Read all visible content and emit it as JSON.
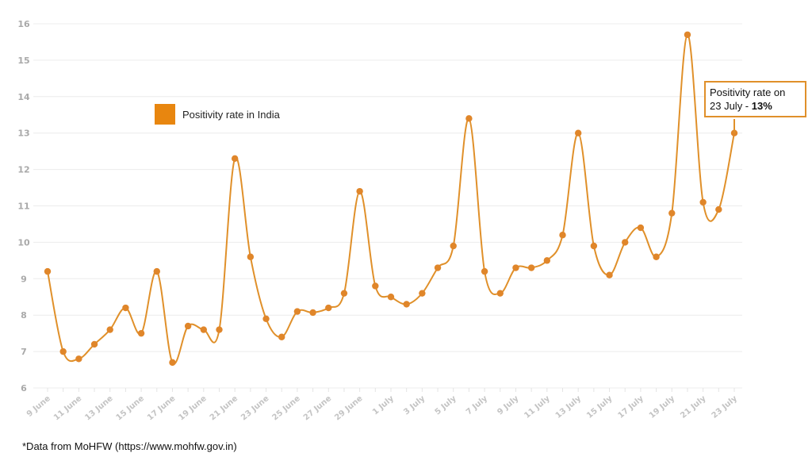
{
  "chart_data": {
    "type": "line",
    "title": "",
    "xlabel": "",
    "ylabel": "",
    "ylim": [
      6,
      16
    ],
    "yticks": [
      6,
      7,
      8,
      9,
      10,
      11,
      12,
      13,
      14,
      15,
      16
    ],
    "grid": true,
    "legend_placement": "top-left",
    "x": [
      "9 June",
      "10 June",
      "11 June",
      "12 June",
      "13 June",
      "14 June",
      "15 June",
      "16 June",
      "17 June",
      "18 June",
      "19 June",
      "20 June",
      "21 June",
      "22 June",
      "23 June",
      "24 June",
      "25 June",
      "26 June",
      "27 June",
      "28 June",
      "29 June",
      "30 June",
      "1 July",
      "2 July",
      "3 July",
      "4 July",
      "5 July",
      "6 July",
      "7 July",
      "8 July",
      "9 July",
      "10 July",
      "11 July",
      "12 July",
      "13 July",
      "14 July",
      "15 July",
      "16 July",
      "17 July",
      "18 July",
      "19 July",
      "20 July",
      "21 July",
      "22 July",
      "23 July"
    ],
    "xtick_labels": [
      "9 June",
      "11 June",
      "13 June",
      "15 June",
      "17 June",
      "19 June",
      "21 June",
      "23 June",
      "25 June",
      "27 June",
      "29 June",
      "1 July",
      "3 July",
      "5 July",
      "7 July",
      "9 July",
      "11 July",
      "13 July",
      "15 July",
      "17 July",
      "19 July",
      "21 July",
      "23 July"
    ],
    "series": [
      {
        "name": "Positivity rate in India",
        "color": "#e8860f",
        "values": [
          9.2,
          7.0,
          6.8,
          7.2,
          7.6,
          8.2,
          7.5,
          9.2,
          6.7,
          7.7,
          7.6,
          7.6,
          12.3,
          9.6,
          7.9,
          7.4,
          8.1,
          8.07,
          8.2,
          8.6,
          11.4,
          8.8,
          8.5,
          8.3,
          8.6,
          9.3,
          9.9,
          13.4,
          9.2,
          8.6,
          9.3,
          9.3,
          9.5,
          10.2,
          13.0,
          9.9,
          9.1,
          10.0,
          10.4,
          9.6,
          10.8,
          15.7,
          11.1,
          10.9,
          13.0
        ]
      }
    ],
    "annotation": {
      "line1": "Positivity rate on",
      "line2_prefix": "23 July - ",
      "line2_value": "13%"
    }
  },
  "legend": {
    "label": "Positivity rate in India"
  },
  "source": "*Data from MoHFW (https://www.mohfw.gov.in)"
}
